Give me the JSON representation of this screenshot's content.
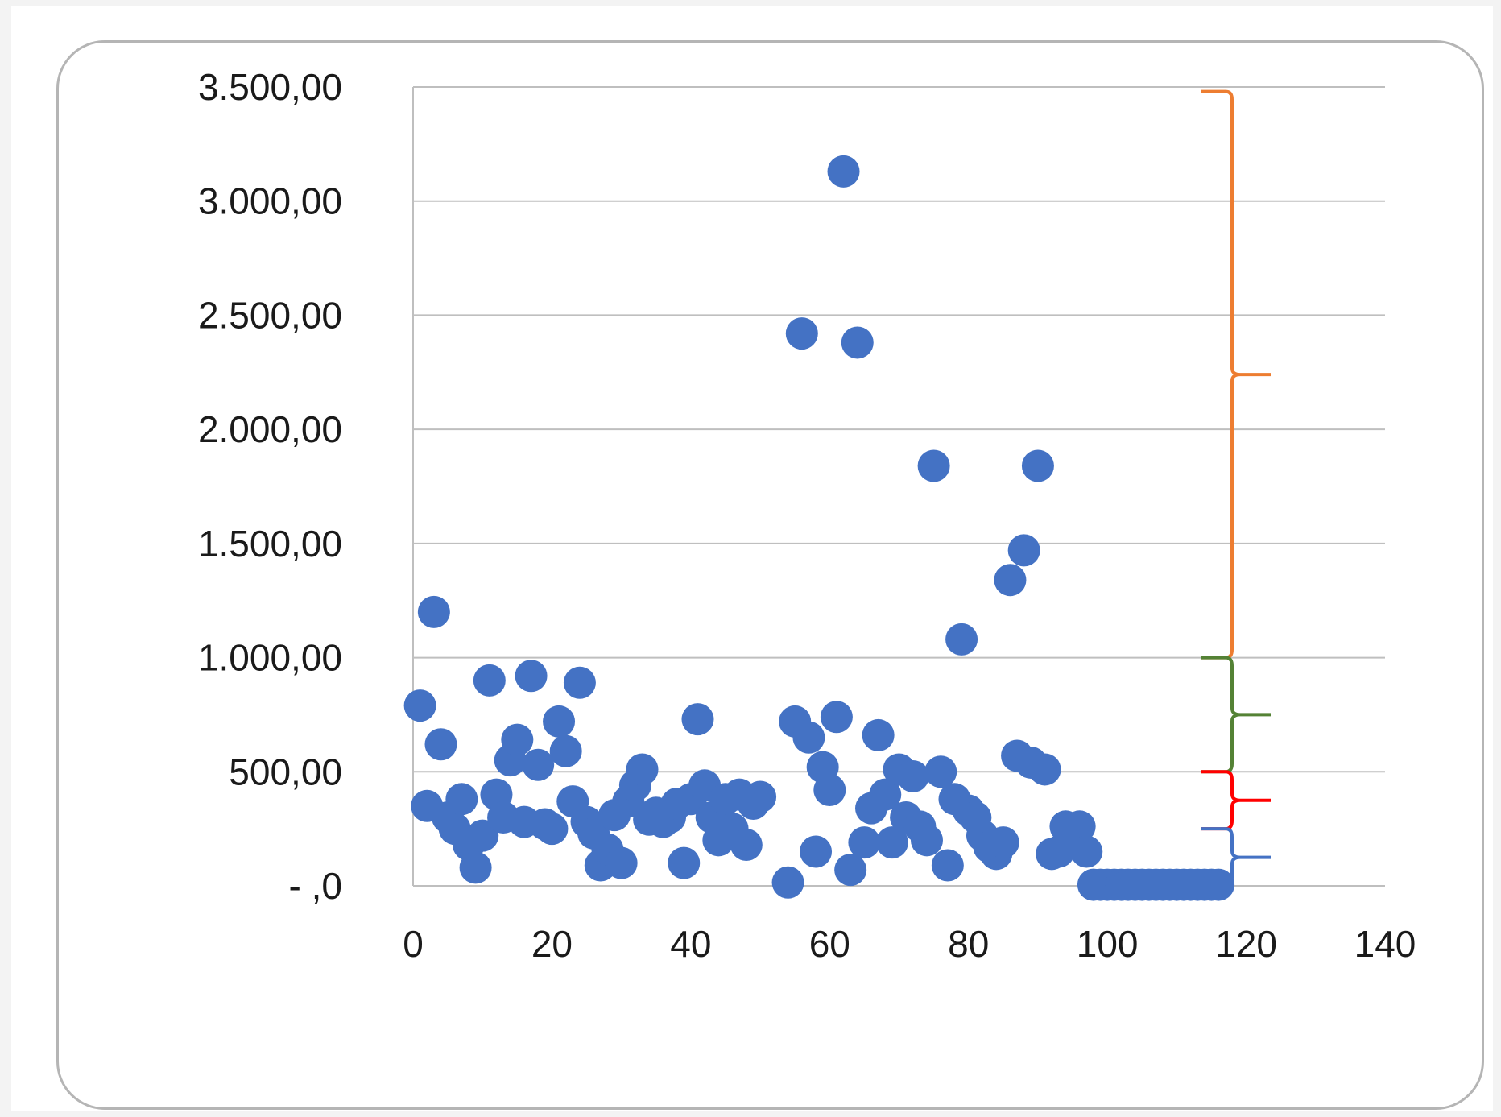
{
  "chart_data": {
    "type": "scatter",
    "title": "",
    "xlabel": "",
    "ylabel": "",
    "xlim": [
      0,
      140
    ],
    "ylim": [
      0,
      3500
    ],
    "grid": "horizontal",
    "legend": "none",
    "x_ticks": [
      {
        "value": 0,
        "label": "0"
      },
      {
        "value": 20,
        "label": "20"
      },
      {
        "value": 40,
        "label": "40"
      },
      {
        "value": 60,
        "label": "60"
      },
      {
        "value": 80,
        "label": "80"
      },
      {
        "value": 100,
        "label": "100"
      },
      {
        "value": 120,
        "label": "120"
      },
      {
        "value": 140,
        "label": "140"
      }
    ],
    "y_ticks": [
      {
        "value": 0,
        "label": "- ,0"
      },
      {
        "value": 500,
        "label": "500,00"
      },
      {
        "value": 1000,
        "label": "1.000,00"
      },
      {
        "value": 1500,
        "label": "1.500,00"
      },
      {
        "value": 2000,
        "label": "2.000,00"
      },
      {
        "value": 2500,
        "label": "2.500,00"
      },
      {
        "value": 3000,
        "label": "3.000,00"
      },
      {
        "value": 3500,
        "label": "3.500,00"
      }
    ],
    "marker_color": "#4472c4",
    "series": [
      {
        "points": [
          [
            1,
            790
          ],
          [
            2,
            350
          ],
          [
            3,
            1200
          ],
          [
            4,
            620
          ],
          [
            5,
            300
          ],
          [
            6,
            250
          ],
          [
            7,
            380
          ],
          [
            8,
            180
          ],
          [
            9,
            80
          ],
          [
            10,
            220
          ],
          [
            11,
            900
          ],
          [
            12,
            400
          ],
          [
            13,
            300
          ],
          [
            14,
            550
          ],
          [
            15,
            640
          ],
          [
            16,
            280
          ],
          [
            17,
            920
          ],
          [
            18,
            530
          ],
          [
            19,
            270
          ],
          [
            20,
            250
          ],
          [
            21,
            720
          ],
          [
            22,
            590
          ],
          [
            23,
            370
          ],
          [
            24,
            890
          ],
          [
            25,
            280
          ],
          [
            26,
            230
          ],
          [
            27,
            90
          ],
          [
            28,
            160
          ],
          [
            29,
            310
          ],
          [
            30,
            100
          ],
          [
            31,
            370
          ],
          [
            32,
            440
          ],
          [
            33,
            510
          ],
          [
            34,
            290
          ],
          [
            35,
            320
          ],
          [
            36,
            280
          ],
          [
            37,
            300
          ],
          [
            38,
            360
          ],
          [
            39,
            100
          ],
          [
            40,
            380
          ],
          [
            41,
            730
          ],
          [
            42,
            440
          ],
          [
            43,
            300
          ],
          [
            44,
            200
          ],
          [
            45,
            380
          ],
          [
            46,
            250
          ],
          [
            47,
            400
          ],
          [
            48,
            180
          ],
          [
            49,
            360
          ],
          [
            50,
            390
          ],
          [
            54,
            15
          ],
          [
            55,
            720
          ],
          [
            56,
            2420
          ],
          [
            57,
            650
          ],
          [
            58,
            150
          ],
          [
            59,
            520
          ],
          [
            60,
            420
          ],
          [
            61,
            740
          ],
          [
            62,
            3130
          ],
          [
            63,
            70
          ],
          [
            64,
            2380
          ],
          [
            65,
            190
          ],
          [
            66,
            340
          ],
          [
            67,
            660
          ],
          [
            68,
            400
          ],
          [
            69,
            190
          ],
          [
            70,
            510
          ],
          [
            71,
            300
          ],
          [
            72,
            480
          ],
          [
            73,
            260
          ],
          [
            74,
            200
          ],
          [
            75,
            1840
          ],
          [
            76,
            500
          ],
          [
            77,
            90
          ],
          [
            78,
            380
          ],
          [
            79,
            1080
          ],
          [
            80,
            330
          ],
          [
            81,
            300
          ],
          [
            82,
            220
          ],
          [
            83,
            170
          ],
          [
            84,
            140
          ],
          [
            85,
            190
          ],
          [
            86,
            1340
          ],
          [
            87,
            570
          ],
          [
            88,
            1470
          ],
          [
            89,
            540
          ],
          [
            90,
            1840
          ],
          [
            91,
            510
          ],
          [
            92,
            140
          ],
          [
            93,
            150
          ],
          [
            94,
            260
          ],
          [
            95,
            200
          ],
          [
            96,
            260
          ],
          [
            97,
            150
          ],
          [
            98,
            5
          ],
          [
            99,
            5
          ],
          [
            100,
            5
          ],
          [
            101,
            5
          ],
          [
            102,
            5
          ],
          [
            103,
            5
          ],
          [
            104,
            5
          ],
          [
            105,
            5
          ],
          [
            106,
            5
          ],
          [
            107,
            5
          ],
          [
            108,
            5
          ],
          [
            109,
            5
          ],
          [
            110,
            5
          ],
          [
            111,
            5
          ],
          [
            112,
            5
          ],
          [
            113,
            5
          ],
          [
            114,
            5
          ],
          [
            115,
            5
          ],
          [
            116,
            5
          ]
        ]
      }
    ],
    "annotations": [
      {
        "kind": "brace",
        "from": 1000,
        "to": 3480,
        "color": "#ed7d31"
      },
      {
        "kind": "brace",
        "from": 500,
        "to": 1000,
        "color": "#548235"
      },
      {
        "kind": "brace",
        "from": 250,
        "to": 500,
        "color": "#ff0000"
      },
      {
        "kind": "brace",
        "from": 0,
        "to": 250,
        "color": "#4472c4"
      }
    ]
  }
}
